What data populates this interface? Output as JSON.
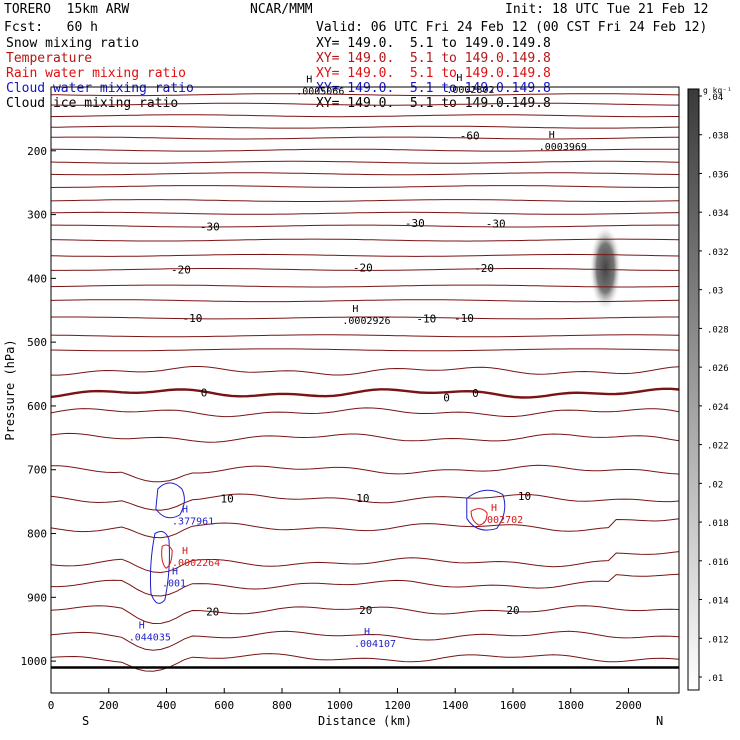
{
  "header": {
    "model": "TORERO  15km ARW",
    "org": "NCAR/MMM",
    "init": "Init: 18 UTC Tue 21 Feb 12",
    "fcst": "Fcst:   60 h",
    "valid": "Valid: 06 UTC Fri 24 Feb 12 (00 CST Fri 24 Feb 12)"
  },
  "fields": [
    {
      "name": "Snow mixing ratio",
      "xy": "",
      "color": "#000000"
    },
    {
      "name": "Temperature",
      "xy": "XY= 149.0.  5.1 to 149.0.149.8",
      "color": "#b21818"
    },
    {
      "name": "Rain water mixing ratio",
      "xy": "XY= 149.0.  5.1 to 149.0.149.8",
      "color": "#e01010"
    },
    {
      "name": "Cloud water mixing ratio",
      "xy": "XY= 149.0.  5.1 to 149.0.149.8",
      "color": "#1414c8"
    },
    {
      "name": "Cloud ice mixing ratio",
      "xy": "XY= 149.0.  5.1 to 149.0.149.8",
      "color": "#000000"
    }
  ],
  "first_xy": "XY= 149.0.  5.1 to 149.0.149.8",
  "colors": {
    "temperature": "#7a1414",
    "rain": "#d81818",
    "cloud_water": "#1f1fc8",
    "ice": "#000000",
    "frame": "#000000"
  },
  "chart_data": {
    "type": "contour",
    "xlabel": "Distance (km)",
    "ylabel": "Pressure (hPa)",
    "xlim": [
      0,
      2175
    ],
    "ylim": [
      1050,
      100
    ],
    "x_ticks": [
      0,
      200,
      400,
      600,
      800,
      1000,
      1200,
      1400,
      1600,
      1800,
      2000
    ],
    "y_ticks": [
      200,
      300,
      400,
      500,
      600,
      700,
      800,
      900,
      1000
    ],
    "direction_left": "S",
    "direction_right": "N",
    "colorbar": {
      "unit": "g kg⁻¹",
      "ticks": [
        ".01",
        ".012",
        ".014",
        ".016",
        ".018",
        ".02",
        ".022",
        ".024",
        ".026",
        ".028",
        ".03",
        ".032",
        ".034",
        ".036",
        ".038",
        ".04"
      ]
    },
    "isotherm_labels": [
      {
        "label": "-60",
        "x": 1450,
        "p": 176
      },
      {
        "label": "-30",
        "x": 550,
        "p": 319
      },
      {
        "label": "-30",
        "x": 1260,
        "p": 313
      },
      {
        "label": "-30",
        "x": 1540,
        "p": 314
      },
      {
        "label": "-20",
        "x": 450,
        "p": 386
      },
      {
        "label": "-20",
        "x": 1080,
        "p": 383
      },
      {
        "label": "-20",
        "x": 1500,
        "p": 384
      },
      {
        "label": "-10",
        "x": 490,
        "p": 462
      },
      {
        "label": "-10",
        "x": 1300,
        "p": 463
      },
      {
        "label": "-10",
        "x": 1430,
        "p": 462
      },
      {
        "label": "0",
        "x": 530,
        "p": 579
      },
      {
        "label": "0",
        "x": 1370,
        "p": 587
      },
      {
        "label": "0",
        "x": 1470,
        "p": 580
      },
      {
        "label": "10",
        "x": 610,
        "p": 745
      },
      {
        "label": "10",
        "x": 1080,
        "p": 744
      },
      {
        "label": "10",
        "x": 1640,
        "p": 741
      },
      {
        "label": "20",
        "x": 560,
        "p": 922
      },
      {
        "label": "20",
        "x": 1090,
        "p": 920
      },
      {
        "label": "20",
        "x": 1600,
        "p": 920
      }
    ],
    "maxima": [
      {
        "label": ".0005066",
        "x": 870,
        "p": 107,
        "color": "black"
      },
      {
        "label": ".0002802",
        "x": 1390,
        "p": 105,
        "color": "black"
      },
      {
        "label": ".0003969",
        "x": 1710,
        "p": 194,
        "color": "black"
      },
      {
        "label": ".0002926",
        "x": 1030,
        "p": 467,
        "color": "black"
      },
      {
        "label": ".377961",
        "x": 440,
        "p": 781,
        "color": "blue"
      },
      {
        "label": ".0002264",
        "x": 440,
        "p": 846,
        "color": "red"
      },
      {
        "label": ".001",
        "x": 405,
        "p": 878,
        "color": "blue"
      },
      {
        "label": ".044035",
        "x": 290,
        "p": 963,
        "color": "blue"
      },
      {
        "label": ".004107",
        "x": 1070,
        "p": 973,
        "color": "blue"
      },
      {
        "label": ".002702",
        "x": 1510,
        "p": 779,
        "color": "red"
      }
    ]
  }
}
